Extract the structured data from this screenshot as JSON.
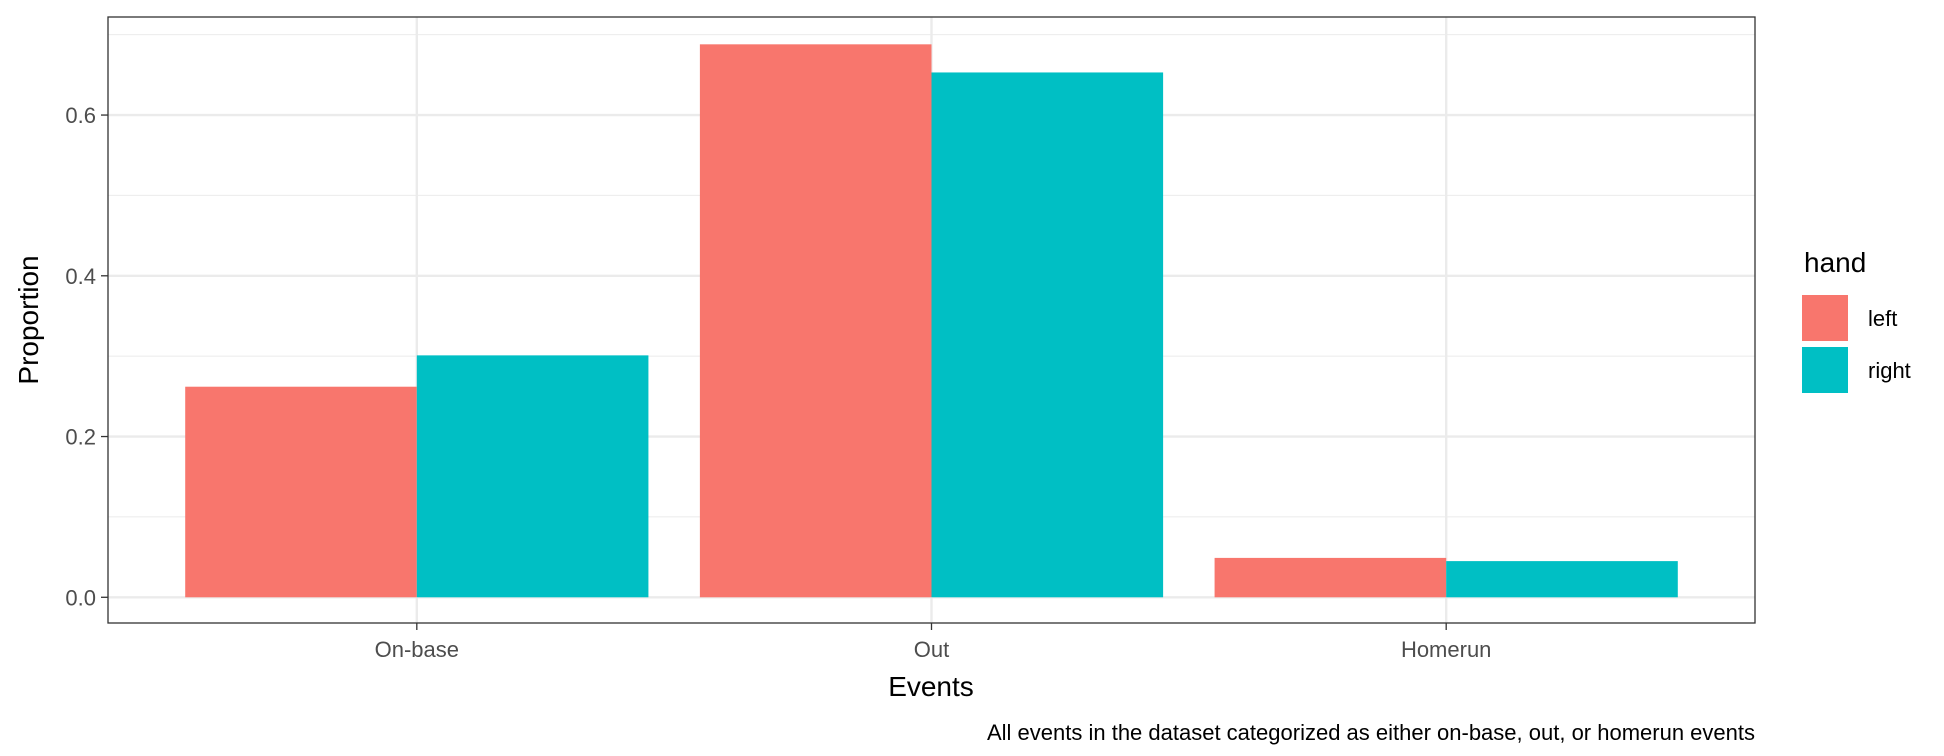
{
  "chart_data": {
    "type": "bar",
    "categories": [
      "On-base",
      "Out",
      "Homerun"
    ],
    "series": [
      {
        "name": "left",
        "color": "#F8766D",
        "values": [
          0.262,
          0.688,
          0.049
        ]
      },
      {
        "name": "right",
        "color": "#00BFC4",
        "values": [
          0.301,
          0.653,
          0.045
        ]
      }
    ],
    "xlabel": "Events",
    "ylabel": "Proportion",
    "yticks": [
      0.0,
      0.2,
      0.4,
      0.6
    ],
    "ytick_labels": [
      "0.0",
      "0.2",
      "0.4",
      "0.6"
    ],
    "ylim": [
      -0.032,
      0.722
    ],
    "grid": true,
    "legend": {
      "title": "hand",
      "placement": "right"
    },
    "caption": "All events in the dataset categorized as either on-base, out, or homerun events"
  }
}
